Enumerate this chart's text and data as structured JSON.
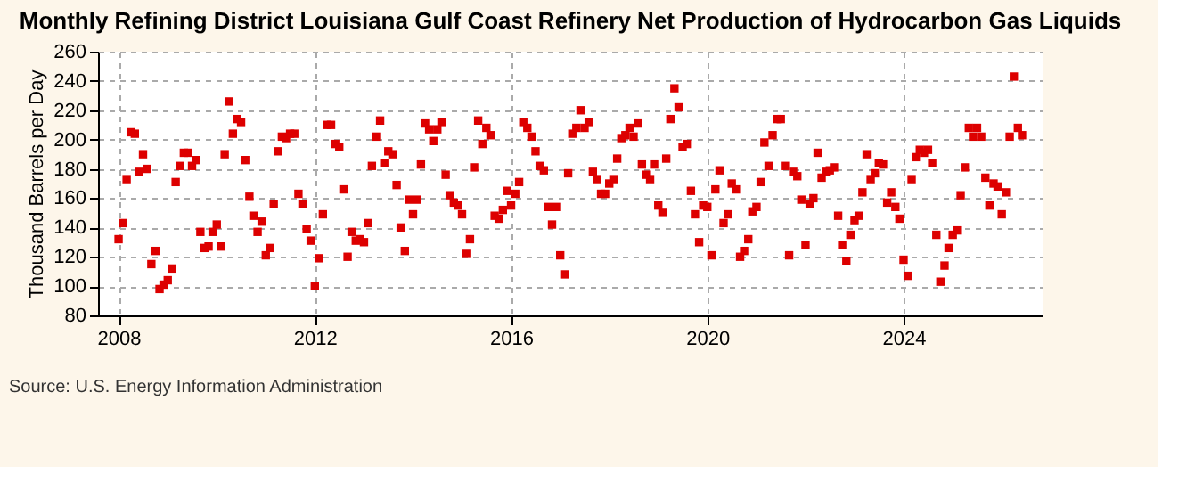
{
  "chart_data": {
    "type": "scatter",
    "title": "Monthly Refining District Louisiana Gulf Coast Refinery Net Production of Hydrocarbon Gas Liquids",
    "ylabel": "Thousand Barrels per Day",
    "annotations": [
      "Source: U.S. Energy Information Administration"
    ],
    "x": [
      "2008-01",
      "2008-02",
      "2008-03",
      "2008-04",
      "2008-05",
      "2008-06",
      "2008-07",
      "2008-08",
      "2008-09",
      "2008-10",
      "2008-11",
      "2008-12",
      "2009-01",
      "2009-02",
      "2009-03",
      "2009-04",
      "2009-05",
      "2009-06",
      "2009-07",
      "2009-08",
      "2009-09",
      "2009-10",
      "2009-11",
      "2009-12",
      "2010-01",
      "2010-02",
      "2010-03",
      "2010-04",
      "2010-05",
      "2010-06",
      "2010-07",
      "2010-08",
      "2010-09",
      "2010-10",
      "2010-11",
      "2010-12",
      "2011-01",
      "2011-02",
      "2011-03",
      "2011-04",
      "2011-05",
      "2011-06",
      "2011-07",
      "2011-08",
      "2011-09",
      "2011-10",
      "2011-11",
      "2011-12",
      "2012-01",
      "2012-02",
      "2012-03",
      "2012-04",
      "2012-05",
      "2012-06",
      "2012-07",
      "2012-08",
      "2012-09",
      "2012-10",
      "2012-11",
      "2012-12",
      "2013-01",
      "2013-02",
      "2013-03",
      "2013-04",
      "2013-05",
      "2013-06",
      "2013-07",
      "2013-08",
      "2013-09",
      "2013-10",
      "2013-11",
      "2013-12",
      "2014-01",
      "2014-02",
      "2014-03",
      "2014-04",
      "2014-05",
      "2014-06",
      "2014-07",
      "2014-08",
      "2014-09",
      "2014-10",
      "2014-11",
      "2014-12",
      "2015-01",
      "2015-02",
      "2015-03",
      "2015-04",
      "2015-05",
      "2015-06",
      "2015-07",
      "2015-08",
      "2015-09",
      "2015-10",
      "2015-11",
      "2015-12",
      "2016-01",
      "2016-02",
      "2016-03",
      "2016-04",
      "2016-05",
      "2016-06",
      "2016-07",
      "2016-08",
      "2016-09",
      "2016-10",
      "2016-11",
      "2016-12",
      "2017-01",
      "2017-02",
      "2017-03",
      "2017-04",
      "2017-05",
      "2017-06",
      "2017-07",
      "2017-08",
      "2017-09",
      "2017-10",
      "2017-11",
      "2017-12",
      "2018-01",
      "2018-02",
      "2018-03",
      "2018-04",
      "2018-05",
      "2018-06",
      "2018-07",
      "2018-08",
      "2018-09",
      "2018-10",
      "2018-11",
      "2018-12",
      "2019-01",
      "2019-02",
      "2019-03",
      "2019-04",
      "2019-05",
      "2019-06",
      "2019-07",
      "2019-08",
      "2019-09",
      "2019-10",
      "2019-11",
      "2019-12",
      "2020-01",
      "2020-02",
      "2020-03",
      "2020-04",
      "2020-05",
      "2020-06",
      "2020-07",
      "2020-08",
      "2020-09",
      "2020-10",
      "2020-11",
      "2020-12",
      "2021-01",
      "2021-02",
      "2021-03",
      "2021-04",
      "2021-05",
      "2021-06",
      "2021-07",
      "2021-08",
      "2021-09",
      "2021-10",
      "2021-11",
      "2021-12",
      "2022-01",
      "2022-02",
      "2022-03",
      "2022-04",
      "2022-05",
      "2022-06",
      "2022-07",
      "2022-08",
      "2022-09",
      "2022-10",
      "2022-11",
      "2022-12",
      "2023-01",
      "2023-02",
      "2023-03",
      "2023-04",
      "2023-05",
      "2023-06",
      "2023-07",
      "2023-08",
      "2023-09",
      "2023-10",
      "2023-11",
      "2023-12",
      "2024-01",
      "2024-02",
      "2024-03",
      "2024-04",
      "2024-05",
      "2024-06",
      "2024-07",
      "2024-08",
      "2024-09",
      "2024-10",
      "2024-11",
      "2024-12",
      "2025-01",
      "2025-02",
      "2025-03",
      "2025-04",
      "2025-05",
      "2025-06",
      "2025-07",
      "2025-08",
      "2025-09",
      "2025-10",
      "2025-11",
      "2025-12",
      "2026-01",
      "2026-02",
      "2026-03",
      "2026-04",
      "2026-05",
      "2026-06"
    ],
    "series": [
      {
        "color": "#dd0000",
        "values": [
          132,
          143,
          173,
          205,
          204,
          178,
          190,
          180,
          115,
          124,
          98,
          101,
          104,
          112,
          171,
          182,
          191,
          191,
          182,
          186,
          137,
          126,
          127,
          137,
          142,
          127,
          190,
          226,
          204,
          214,
          212,
          186,
          161,
          148,
          137,
          144,
          121,
          126,
          156,
          192,
          202,
          201,
          204,
          204,
          163,
          156,
          139,
          131,
          100,
          119,
          149,
          210,
          210,
          197,
          195,
          166,
          120,
          137,
          131,
          132,
          130,
          143,
          182,
          202,
          213,
          184,
          192,
          190,
          169,
          140,
          124,
          159,
          149,
          159,
          183,
          211,
          207,
          199,
          207,
          212,
          176,
          162,
          157,
          155,
          149,
          122,
          132,
          181,
          213,
          197,
          208,
          203,
          148,
          146,
          152,
          165,
          155,
          163,
          171,
          212,
          208,
          202,
          192,
          182,
          179,
          154,
          142,
          154,
          121,
          108,
          177,
          204,
          208,
          220,
          208,
          212,
          178,
          173,
          163,
          163,
          170,
          173,
          187,
          201,
          203,
          208,
          202,
          211,
          183,
          176,
          173,
          183,
          155,
          150,
          187,
          214,
          235,
          222,
          195,
          197,
          165,
          149,
          130,
          155,
          154,
          121,
          166,
          179,
          143,
          149,
          170,
          166,
          120,
          124,
          132,
          151,
          154,
          171,
          198,
          182,
          203,
          214,
          214,
          182,
          121,
          178,
          175,
          159,
          128,
          156,
          160,
          191,
          174,
          178,
          179,
          181,
          148,
          128,
          117,
          135,
          145,
          148,
          164,
          190,
          173,
          177,
          184,
          183,
          157,
          164,
          154,
          146,
          118,
          107,
          173,
          188,
          193,
          191,
          193,
          184,
          135,
          103,
          114,
          126,
          135,
          138,
          162,
          181,
          208,
          202,
          208,
          202,
          174,
          155,
          170,
          168,
          149,
          164,
          202,
          243,
          208,
          203
        ]
      }
    ],
    "xlim": [
      "2007-08",
      "2026-11"
    ],
    "xticks": [
      "2008",
      "2012",
      "2016",
      "2020",
      "2024"
    ],
    "ylim": [
      80,
      260
    ],
    "yticks": [
      80,
      100,
      120,
      140,
      160,
      180,
      200,
      220,
      240,
      260
    ],
    "grid": true,
    "marker": "square",
    "legend": false
  }
}
